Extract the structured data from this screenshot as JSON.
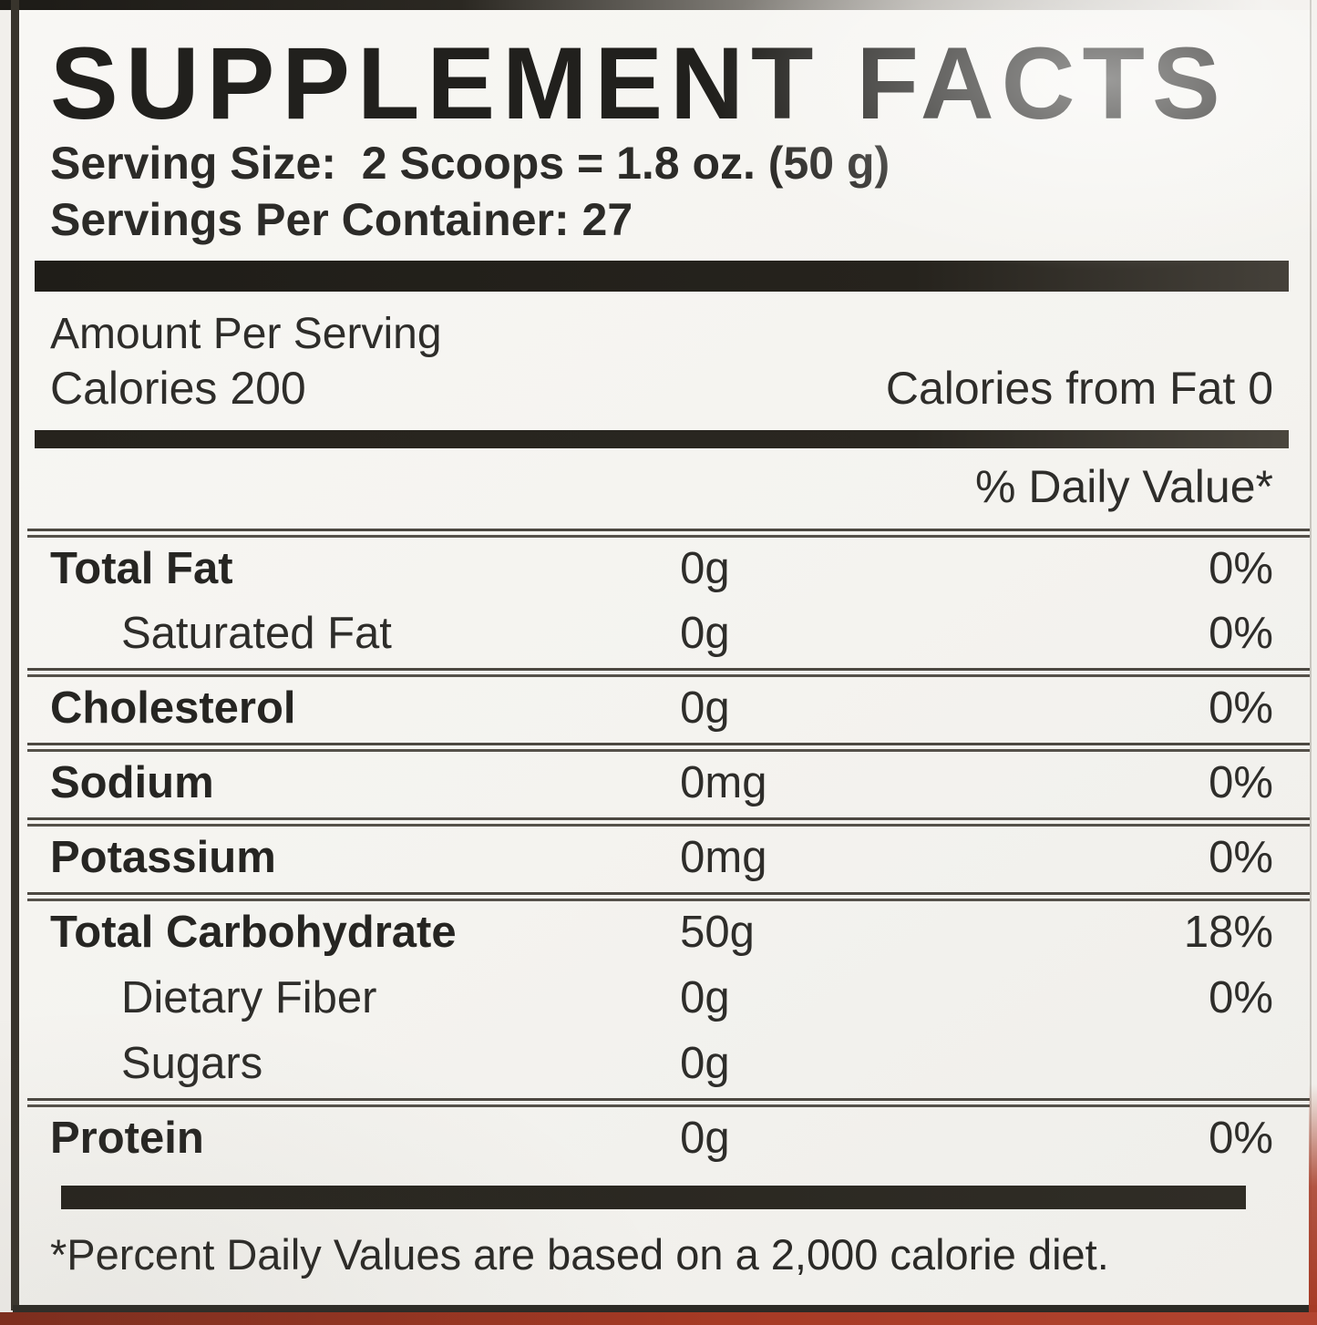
{
  "label": {
    "title": "SUPPLEMENT FACTS",
    "serving": {
      "label": "Serving Size:",
      "value": "2 Scoops = 1.8 oz. (50 g)"
    },
    "servings_per_container": {
      "label": "Servings Per Container:",
      "value": "27"
    },
    "amount_per_serving": "Amount Per Serving",
    "calories": {
      "label": "Calories",
      "value": "200"
    },
    "calories_from_fat": {
      "label": "Calories from Fat",
      "value": "0"
    },
    "daily_value_header": "% Daily Value*",
    "rows": [
      {
        "name": "Total Fat",
        "amount": "0g",
        "dv": "0%",
        "bold": true,
        "indent": false,
        "rule_above": true
      },
      {
        "name": "Saturated Fat",
        "amount": "0g",
        "dv": "0%",
        "bold": false,
        "indent": true,
        "rule_above": false
      },
      {
        "name": "Cholesterol",
        "amount": "0g",
        "dv": "0%",
        "bold": true,
        "indent": false,
        "rule_above": true
      },
      {
        "name": "Sodium",
        "amount": "0mg",
        "dv": "0%",
        "bold": true,
        "indent": false,
        "rule_above": true
      },
      {
        "name": "Potassium",
        "amount": "0mg",
        "dv": "0%",
        "bold": true,
        "indent": false,
        "rule_above": true
      },
      {
        "name": "Total Carbohydrate",
        "amount": "50g",
        "dv": "18%",
        "bold": true,
        "indent": false,
        "rule_above": true
      },
      {
        "name": "Dietary Fiber",
        "amount": "0g",
        "dv": "0%",
        "bold": false,
        "indent": true,
        "rule_above": false
      },
      {
        "name": "Sugars",
        "amount": "0g",
        "dv": "",
        "bold": false,
        "indent": true,
        "rule_above": false
      },
      {
        "name": "Protein",
        "amount": "0g",
        "dv": "0%",
        "bold": true,
        "indent": false,
        "rule_above": true
      }
    ],
    "footnote": "*Percent Daily Values are based on a 2,000 calorie diet."
  },
  "colors": {
    "ink": "#2a2825",
    "bar": "#23211c",
    "packaging_red": "#a63a25"
  }
}
